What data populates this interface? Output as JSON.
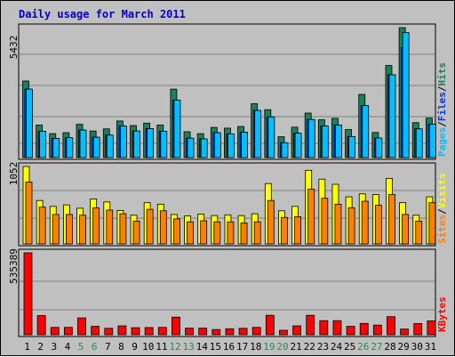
{
  "title": "Daily usage for March 2011",
  "colors": {
    "hits": "#1a7f5a",
    "files": "#0033ff",
    "pages": "#00c0ff",
    "visits": "#ffff00",
    "sites": "#ff8000",
    "kbytes": "#ff0000",
    "weekend_label": "#1f8f5f",
    "weekday_label": "#000000"
  },
  "legend": {
    "hits": "Hits",
    "files": "Files",
    "pages": "Pages",
    "sep": "/",
    "visits": "Visits",
    "sites": "Sites",
    "kbytes": "KBytes"
  },
  "chart_data": [
    {
      "type": "bar",
      "panel": "hits-files-pages",
      "ymax_label": "5432",
      "ylim": [
        0,
        5432
      ],
      "categories": [
        "1",
        "2",
        "3",
        "4",
        "5",
        "6",
        "7",
        "8",
        "9",
        "10",
        "11",
        "12",
        "13",
        "14",
        "15",
        "16",
        "17",
        "18",
        "19",
        "20",
        "21",
        "22",
        "23",
        "24",
        "25",
        "26",
        "27",
        "28",
        "29",
        "30",
        "31"
      ],
      "weekend_days": [
        5,
        6,
        12,
        13,
        19,
        20,
        26,
        27
      ],
      "series": [
        {
          "name": "Hits",
          "values": [
            3200,
            1360,
            1000,
            1040,
            1390,
            1110,
            1200,
            1530,
            1340,
            1440,
            1360,
            2860,
            1080,
            1000,
            1260,
            1230,
            1300,
            2250,
            2000,
            870,
            1270,
            1860,
            1580,
            1640,
            1170,
            2640,
            1050,
            3850,
            5430,
            1460,
            1650
          ]
        },
        {
          "name": "Files",
          "values": [
            2860,
            1100,
            800,
            830,
            1150,
            850,
            940,
            1320,
            1110,
            1210,
            1100,
            2400,
            810,
            780,
            1040,
            990,
            1060,
            1970,
            1700,
            620,
            1020,
            1590,
            1320,
            1360,
            880,
            2170,
            820,
            3460,
            4600,
            1200,
            1400
          ]
        },
        {
          "name": "Pages",
          "values": [
            2860,
            1100,
            800,
            830,
            1150,
            850,
            940,
            1320,
            1110,
            1210,
            1100,
            2400,
            810,
            780,
            1040,
            990,
            1060,
            1970,
            1700,
            620,
            1020,
            1590,
            1320,
            1360,
            880,
            2170,
            820,
            3460,
            5230,
            1200,
            1400
          ]
        }
      ]
    },
    {
      "type": "bar",
      "panel": "visits-sites",
      "ymax_label": "1052",
      "ylim": [
        0,
        1052
      ],
      "series": [
        {
          "name": "Visits",
          "values": [
            1052,
            590,
            510,
            530,
            485,
            610,
            570,
            455,
            390,
            560,
            540,
            400,
            380,
            405,
            385,
            395,
            385,
            410,
            820,
            450,
            510,
            1000,
            880,
            810,
            640,
            680,
            670,
            890,
            560,
            390,
            640
          ]
        },
        {
          "name": "Sites",
          "values": [
            840,
            500,
            400,
            400,
            390,
            490,
            460,
            410,
            310,
            470,
            450,
            340,
            300,
            315,
            300,
            300,
            285,
            300,
            590,
            360,
            370,
            745,
            620,
            540,
            490,
            580,
            525,
            670,
            400,
            310,
            560
          ]
        }
      ]
    },
    {
      "type": "bar",
      "panel": "kbytes",
      "ymax_label": "535389",
      "ylim": [
        0,
        535389
      ],
      "series": [
        {
          "name": "KBytes",
          "values": [
            535389,
            125000,
            48000,
            48000,
            110000,
            55000,
            42000,
            58000,
            46000,
            47000,
            48000,
            115000,
            43000,
            43000,
            34000,
            39000,
            42000,
            48000,
            127000,
            29000,
            58000,
            127000,
            92000,
            92000,
            55000,
            74000,
            63000,
            118000,
            37000,
            73000,
            91000
          ]
        }
      ]
    }
  ]
}
